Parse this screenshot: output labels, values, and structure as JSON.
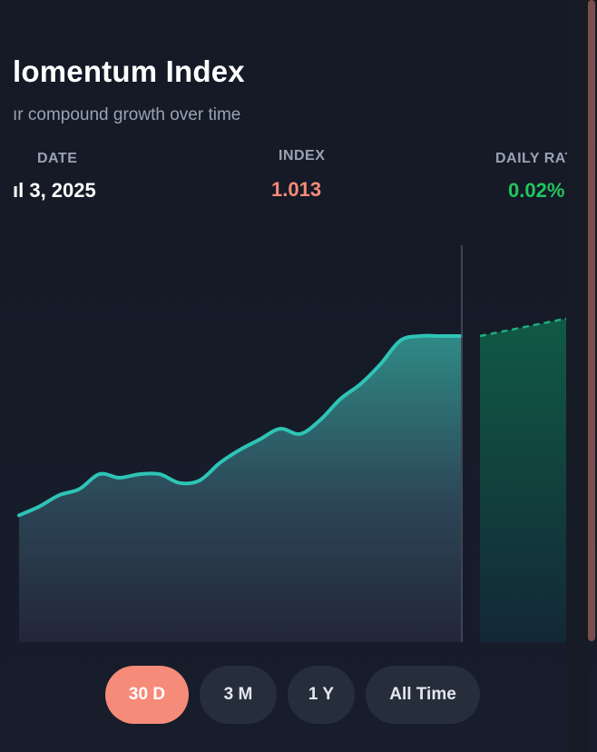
{
  "header": {
    "title": "lomentum Index",
    "subtitle": "ır compound growth over time"
  },
  "stats": {
    "date_label": "DATE",
    "date_value": "ıl 3, 2025",
    "index_label": "INDEX",
    "index_value": "1.013",
    "rate_label": "DAILY RAT",
    "rate_value": "0.02%"
  },
  "colors": {
    "index_value": "#f58b78",
    "rate_value": "#22c55e",
    "line": "#2ec4b6",
    "projection": "#1fae7e",
    "active_button": "#f58b78"
  },
  "range_buttons": [
    {
      "label": "30 D",
      "active": true
    },
    {
      "label": "3 M",
      "active": false
    },
    {
      "label": "1 Y",
      "active": false
    },
    {
      "label": "All Time",
      "active": false
    }
  ],
  "chart_data": {
    "type": "area",
    "title": "",
    "xlabel": "",
    "ylabel": "",
    "series": [
      {
        "values": [
          0.9925,
          0.9935,
          0.9948,
          0.9955,
          0.9972,
          0.9968,
          0.9972,
          0.9972,
          0.9962,
          0.9965,
          0.9985,
          1.0,
          1.0012,
          1.0024,
          1.0018,
          1.0034,
          1.0058,
          1.0075,
          1.0098,
          1.0125,
          1.013,
          1.013,
          1.013
        ]
      }
    ],
    "projection": [
      1.013,
      1.0134,
      1.0138,
      1.0142,
      1.0146,
      1.015
    ],
    "ylim": [
      0.978,
      1.0265
    ],
    "grid": false,
    "legend": "none"
  }
}
